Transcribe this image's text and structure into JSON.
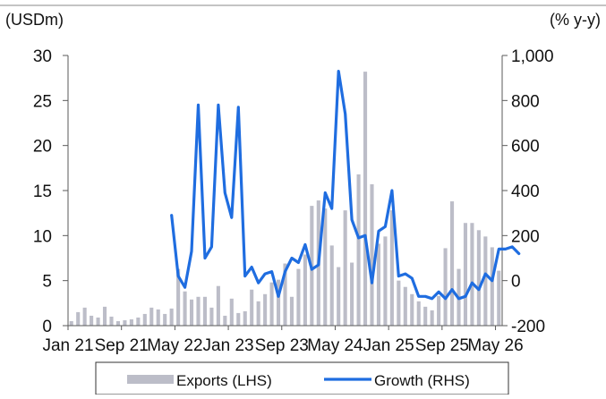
{
  "chart_data": {
    "type": "bar",
    "left_axis_unit": "(USDm)",
    "right_axis_unit": "(% y-y)",
    "left_ylim": [
      0,
      30
    ],
    "right_ylim": [
      -200,
      1000
    ],
    "left_ticks": [
      "30",
      "25",
      "20",
      "15",
      "10",
      "5",
      "0"
    ],
    "right_ticks": [
      "1,000",
      "800",
      "600",
      "400",
      "200",
      "0",
      "-200"
    ],
    "x_tick_labels": [
      "Jan 21",
      "Sep 21",
      "May 22",
      "Jan 23",
      "Sep 23",
      "May 24",
      "Jan 25",
      "Sep 25",
      "May 26"
    ],
    "x_tick_index": [
      0,
      8,
      16,
      24,
      32,
      40,
      48,
      56,
      64
    ],
    "series": [
      {
        "name": "Exports (LHS)",
        "type": "bar",
        "axis": "left",
        "values": [
          0.5,
          1.5,
          2.0,
          1.1,
          0.9,
          2.1,
          1.0,
          0.5,
          0.6,
          0.7,
          0.9,
          1.3,
          2.0,
          1.8,
          1.3,
          1.9,
          6.3,
          3.8,
          2.9,
          3.2,
          3.2,
          2.0,
          4.4,
          1.1,
          3.0,
          1.4,
          1.6,
          4.0,
          2.7,
          3.5,
          4.8,
          5.1,
          6.9,
          3.2,
          6.3,
          7.9,
          13.3,
          13.9,
          13.0,
          8.9,
          6.5,
          12.8,
          7.0,
          16.8,
          28.2,
          15.7,
          9.1,
          9.9,
          12.8,
          5.0,
          4.3,
          3.5,
          2.7,
          2.1,
          1.7,
          3.3,
          8.6,
          13.8,
          6.3,
          11.4,
          11.4,
          10.6,
          9.9,
          8.7,
          6.1
        ]
      },
      {
        "name": "Growth (RHS)",
        "type": "line",
        "axis": "right",
        "start_index": 15,
        "values": [
          290,
          20,
          -30,
          130,
          780,
          100,
          150,
          780,
          390,
          280,
          770,
          20,
          60,
          -10,
          30,
          40,
          -70,
          40,
          100,
          80,
          160,
          50,
          70,
          390,
          320,
          930,
          740,
          270,
          190,
          200,
          -10,
          220,
          240,
          400,
          20,
          30,
          10,
          -70,
          -70,
          -80,
          -50,
          -80,
          -40,
          -80,
          -70,
          -10,
          -40,
          30,
          0,
          140,
          140,
          150,
          120
        ]
      }
    ],
    "legend": [
      {
        "label": "Exports (LHS)",
        "color": "#bcbdc8",
        "kind": "bar"
      },
      {
        "label": "Growth (RHS)",
        "color": "#1f6de0",
        "kind": "line"
      }
    ],
    "legend_placement": "bottom",
    "grid": false,
    "colors": {
      "bar": "#bcbdc8",
      "line": "#1f6de0",
      "axis": "#5a5a5a"
    }
  }
}
